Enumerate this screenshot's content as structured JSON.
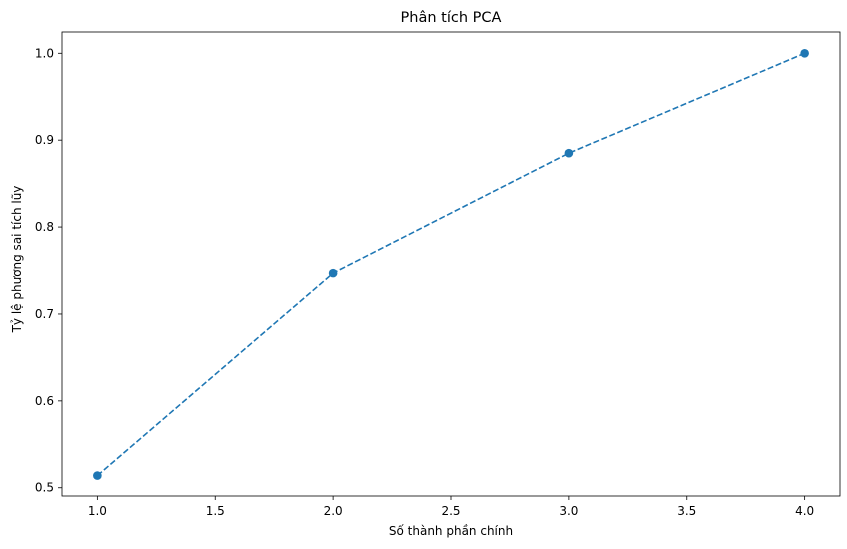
{
  "chart_data": {
    "type": "line",
    "title": "Phân tích PCA",
    "xlabel": "Số thành phần chính",
    "ylabel": "Tỷ lệ phương sai tích lũy",
    "x": [
      1,
      2,
      3,
      4
    ],
    "series": [
      {
        "values": [
          0.514,
          0.747,
          0.885,
          1.0
        ],
        "color": "#1f77b4",
        "line_style": "dashed",
        "marker": "circle"
      }
    ],
    "xlim": [
      0.85,
      4.15
    ],
    "ylim": [
      0.4905,
      1.0245
    ],
    "x_ticks": [
      1.0,
      1.5,
      2.0,
      2.5,
      3.0,
      3.5,
      4.0
    ],
    "x_tick_labels": [
      "1.0",
      "1.5",
      "2.0",
      "2.5",
      "3.0",
      "3.5",
      "4.0"
    ],
    "y_ticks": [
      0.5,
      0.6,
      0.7,
      0.8,
      0.9,
      1.0
    ],
    "y_tick_labels": [
      "0.5",
      "0.6",
      "0.7",
      "0.8",
      "0.9",
      "1.0"
    ],
    "grid": false,
    "legend": "none"
  }
}
